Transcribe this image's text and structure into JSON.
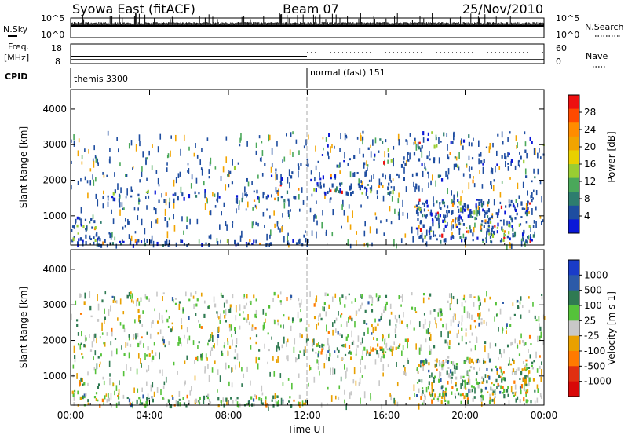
{
  "header": {
    "radar": "Syowa East (fitACF)",
    "beam": "Beam 07",
    "date": "25/Nov/2010"
  },
  "housekeeping": {
    "nsky_label": "N.Sky",
    "nsky_ticks": [
      "10^5",
      "10^0"
    ],
    "nsearch_label": "N.Search",
    "nsearch_ticks": [
      "10^5",
      "10^0"
    ],
    "freq_label": "Freq.",
    "freq_unit": "[MHz]",
    "freq_ticks": [
      "18",
      "8"
    ],
    "nave_label": "Nave",
    "nave_ticks": [
      "60",
      "0"
    ],
    "cpid_label": "CPID",
    "cpid_segments": [
      {
        "name": "themis 3300",
        "start_hour": 0,
        "end_hour": 12
      },
      {
        "name": "normal (fast) 151",
        "start_hour": 12,
        "end_hour": 24
      }
    ]
  },
  "power_legend": {
    "title": "Power [dB]",
    "ticks": [
      "28",
      "24",
      "20",
      "16",
      "12",
      "8",
      "4"
    ],
    "colors": [
      "#ee1010",
      "#ff4a00",
      "#ff8c00",
      "#f2a400",
      "#e8d000",
      "#9acd32",
      "#4aa85a",
      "#2e7d6e",
      "#1e4da0",
      "#0a18d8"
    ]
  },
  "velocity_legend": {
    "title": "Velocity [m s-1]",
    "ticks": [
      "1000",
      "500",
      "100",
      "25",
      "-25",
      "-100",
      "-500",
      "-1000"
    ],
    "colors": [
      "#1a3cc8",
      "#2c5aa8",
      "#2f7a52",
      "#55c23a",
      "#c8c8c8",
      "#e8a000",
      "#ff7a00",
      "#e03010",
      "#d80808"
    ]
  },
  "chart_data": [
    {
      "type": "heatmap",
      "panel": "power",
      "ylabel": "Slant Range [km]",
      "yticks": [
        1000,
        2000,
        3000,
        4000
      ],
      "ylim": [
        180,
        4550
      ],
      "xlim": [
        0,
        24
      ],
      "xticks": [
        "00:00",
        "04:00",
        "08:00",
        "12:00",
        "16:00",
        "20:00",
        "00:00"
      ],
      "colorbar": "Power [dB]",
      "regions": [
        {
          "x": [
            0,
            12
          ],
          "y": [
            200,
            350
          ],
          "level": "dense"
        },
        {
          "x": [
            0,
            1.5
          ],
          "y": [
            350,
            1000
          ],
          "level": "dense"
        },
        {
          "x": [
            1.5,
            11.5
          ],
          "y": [
            1450,
            1750
          ],
          "level": "medium"
        },
        {
          "x": [
            8,
            12
          ],
          "y": [
            1750,
            2500
          ],
          "level": "sparse"
        },
        {
          "x": [
            12,
            16.5
          ],
          "y": [
            1650,
            1950
          ],
          "level": "dense"
        },
        {
          "x": [
            17.5,
            23.5
          ],
          "y": [
            300,
            1500
          ],
          "level": "dense"
        },
        {
          "x": [
            12,
            24
          ],
          "y": [
            2000,
            3400
          ],
          "level": "sparse"
        }
      ]
    },
    {
      "type": "heatmap",
      "panel": "velocity",
      "ylabel": "Slant Range [km]",
      "yticks": [
        1000,
        2000,
        3000,
        4000
      ],
      "ylim": [
        180,
        4550
      ],
      "xlim": [
        0,
        24
      ],
      "xticks": [
        "00:00",
        "04:00",
        "08:00",
        "12:00",
        "16:00",
        "20:00",
        "00:00"
      ],
      "xlabel": "Time UT",
      "colorbar": "Velocity [m s-1]",
      "regions": [
        {
          "x": [
            0,
            12
          ],
          "y": [
            200,
            500
          ],
          "level": "dense"
        },
        {
          "x": [
            0,
            1.5
          ],
          "y": [
            500,
            1000
          ],
          "level": "medium"
        },
        {
          "x": [
            12,
            16.5
          ],
          "y": [
            1650,
            1950
          ],
          "level": "dense"
        },
        {
          "x": [
            17.5,
            23.5
          ],
          "y": [
            300,
            1500
          ],
          "level": "dense"
        },
        {
          "x": [
            0,
            24
          ],
          "y": [
            1500,
            3400
          ],
          "level": "sparse"
        }
      ]
    }
  ]
}
